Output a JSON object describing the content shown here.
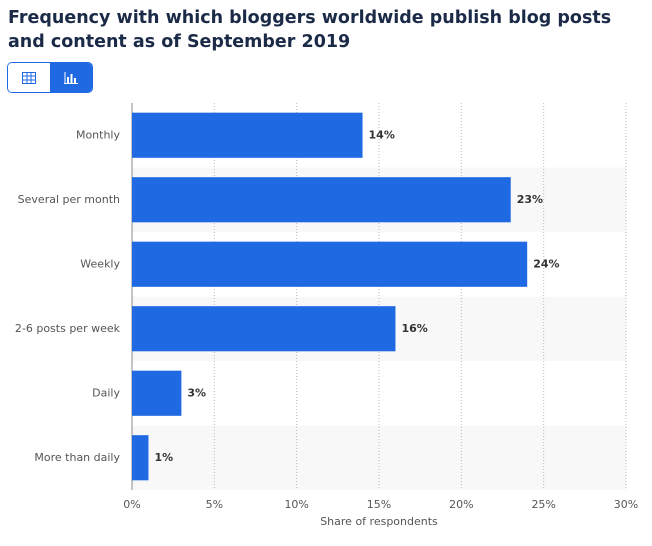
{
  "chart_data": {
    "type": "hbar",
    "title": "Frequency with which bloggers worldwide publish blog posts and content as of September 2019",
    "categories": [
      "Monthly",
      "Several per month",
      "Weekly",
      "2-6 posts per week",
      "Daily",
      "More than daily"
    ],
    "values": [
      14,
      23,
      24,
      16,
      3,
      1
    ],
    "value_labels": [
      "14%",
      "23%",
      "24%",
      "16%",
      "3%",
      "1%"
    ],
    "color": "#1f6ae3",
    "xlim": [
      0,
      30
    ],
    "xticks": [
      {
        "value": 0,
        "label": "0%"
      },
      {
        "value": 5,
        "label": "5%"
      },
      {
        "value": 10,
        "label": "10%"
      },
      {
        "value": 15,
        "label": "15%"
      },
      {
        "value": 20,
        "label": "20%"
      },
      {
        "value": 25,
        "label": "25%"
      },
      {
        "value": 30,
        "label": "30%"
      }
    ],
    "xlabel": "Share of respondents",
    "grid": true
  }
}
